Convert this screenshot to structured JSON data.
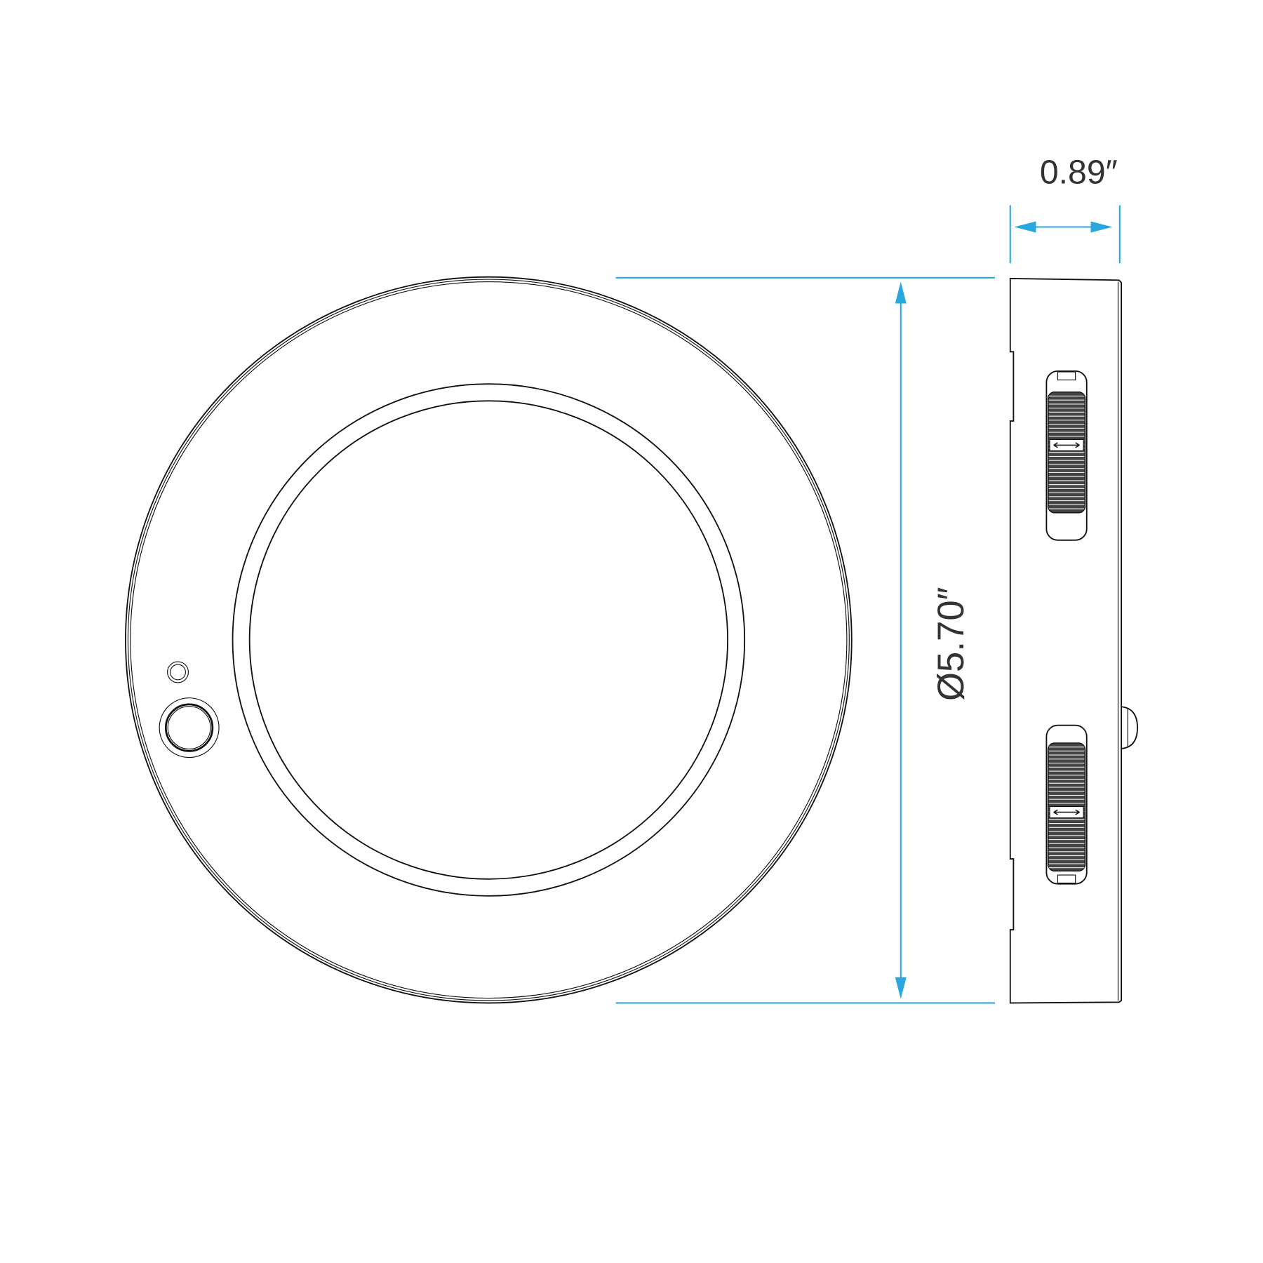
{
  "dimensions": {
    "depth_label": "0.89″",
    "diameter_label": "Ø5.70″"
  },
  "colors": {
    "dimension_line": "#29a8e0",
    "outline": "#111111",
    "text": "#333333"
  },
  "views": [
    "front-view",
    "side-view"
  ]
}
